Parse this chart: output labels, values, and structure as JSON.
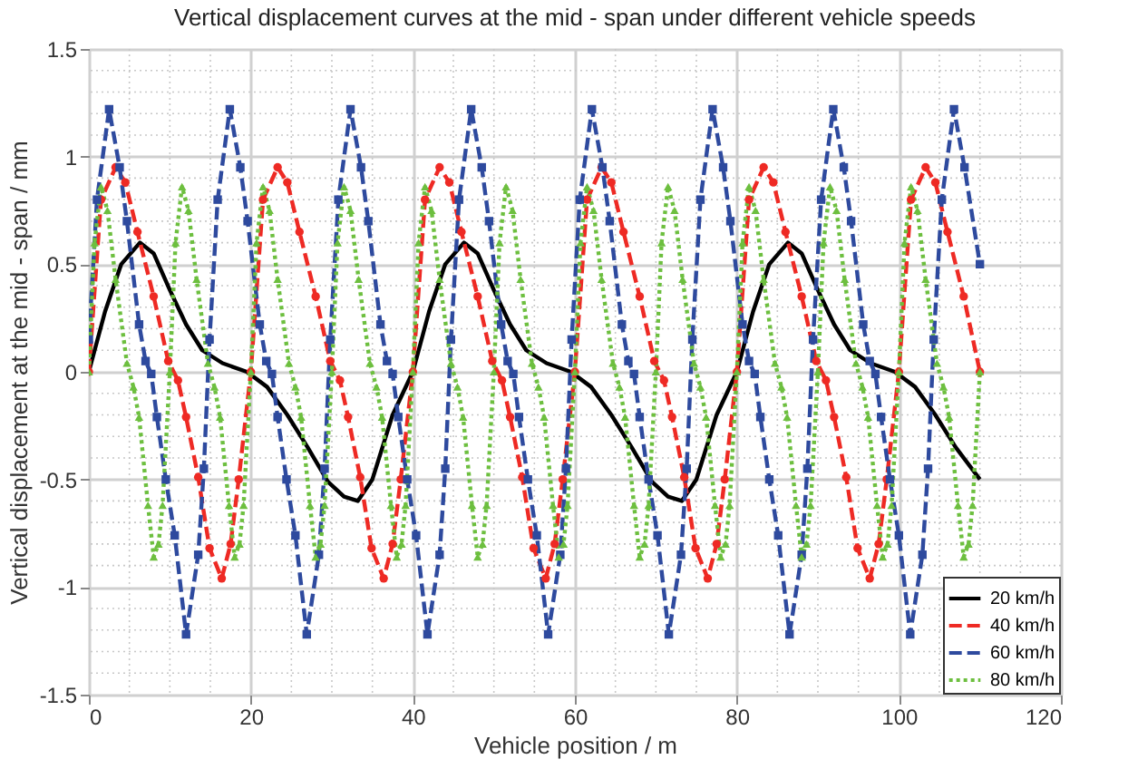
{
  "chart_data": {
    "type": "line",
    "title": "Vertical displacement curves at the mid - span under different vehicle speeds",
    "xlabel": "Vehicle position / m",
    "ylabel": "Vertical displacement at the mid - span / mm",
    "xlim": [
      0,
      120
    ],
    "xticks": [
      0,
      20,
      40,
      60,
      80,
      100,
      120
    ],
    "ylim": [
      -1.5,
      1.5
    ],
    "yticks": [
      -1.5,
      -1,
      -0.5,
      0,
      0.5,
      1,
      1.5
    ],
    "grid": true,
    "legend": "bottom right",
    "series": [
      {
        "name": "20 km/h",
        "color": "#000000",
        "line_style": "solid",
        "marker": "none",
        "x": [
          0,
          2,
          4,
          6.3,
          8,
          10,
          12,
          14,
          16.5,
          19.5,
          22,
          24.5,
          27,
          29.5,
          31.5,
          33.2,
          35,
          37.5,
          40,
          42,
          44,
          46.3,
          48,
          50,
          52,
          54,
          56.5,
          59.5,
          62,
          64.5,
          67,
          69.5,
          71.5,
          73.2,
          75,
          77.5,
          80,
          82,
          84,
          86.3,
          88,
          90,
          92,
          94,
          96.5,
          99.5,
          102,
          104.5,
          107,
          110
        ],
        "values": [
          0,
          0.28,
          0.5,
          0.6,
          0.55,
          0.38,
          0.22,
          0.1,
          0.04,
          0,
          -0.07,
          -0.2,
          -0.35,
          -0.51,
          -0.58,
          -0.6,
          -0.5,
          -0.2,
          0,
          0.28,
          0.5,
          0.6,
          0.55,
          0.38,
          0.22,
          0.1,
          0.04,
          0,
          -0.07,
          -0.2,
          -0.35,
          -0.51,
          -0.58,
          -0.6,
          -0.5,
          -0.2,
          0,
          0.28,
          0.5,
          0.6,
          0.55,
          0.38,
          0.22,
          0.1,
          0.04,
          0,
          -0.07,
          -0.2,
          -0.35,
          -0.5
        ]
      },
      {
        "name": "40 km/h",
        "color": "#ee2a24",
        "line_style": "dashed",
        "marker": "circle",
        "x": [
          0,
          1.5,
          3.3,
          4.5,
          6,
          8,
          9.8,
          11,
          12,
          13.5,
          14.9,
          16.4,
          17.5,
          18.5,
          20,
          21.5,
          23.3,
          24.5,
          26,
          28,
          29.8,
          31,
          32,
          33.5,
          34.9,
          36.4,
          37.5,
          38.5,
          40,
          41.5,
          43.3,
          44.5,
          46,
          48,
          49.8,
          51,
          52,
          53.5,
          54.9,
          56.4,
          57.5,
          58.5,
          60,
          61.5,
          63.3,
          64.5,
          66,
          68,
          69.8,
          71,
          72,
          73.5,
          74.9,
          76.4,
          77.5,
          78.5,
          80,
          81.5,
          83.3,
          84.5,
          86,
          88,
          89.8,
          91,
          92,
          93.5,
          94.9,
          96.4,
          97.5,
          98.5,
          100,
          101.5,
          103.3,
          104.5,
          106,
          108,
          110
        ],
        "values": [
          0,
          0.8,
          0.95,
          0.88,
          0.65,
          0.35,
          0.05,
          -0.04,
          -0.21,
          -0.49,
          -0.82,
          -0.96,
          -0.8,
          -0.5,
          0,
          0.8,
          0.95,
          0.88,
          0.65,
          0.35,
          0.05,
          -0.04,
          -0.21,
          -0.49,
          -0.82,
          -0.96,
          -0.8,
          -0.5,
          0,
          0.8,
          0.95,
          0.88,
          0.65,
          0.35,
          0.05,
          -0.04,
          -0.21,
          -0.49,
          -0.82,
          -0.96,
          -0.8,
          -0.5,
          0,
          0.8,
          0.95,
          0.88,
          0.65,
          0.35,
          0.05,
          -0.04,
          -0.21,
          -0.49,
          -0.82,
          -0.96,
          -0.8,
          -0.5,
          0,
          0.8,
          0.95,
          0.88,
          0.65,
          0.35,
          0.05,
          -0.04,
          -0.21,
          -0.49,
          -0.82,
          -0.96,
          -0.8,
          -0.5,
          0,
          0.8,
          0.95,
          0.88,
          0.65,
          0.35,
          0
        ]
      },
      {
        "name": "60 km/h",
        "color": "#2e4a9e",
        "line_style": "dashed",
        "marker": "square",
        "x": [
          0,
          1,
          2.5,
          3.8,
          4.7,
          6.2,
          7,
          7.7,
          8.4,
          9.5,
          10.6,
          12,
          13.5,
          14.2,
          14.9,
          15.9,
          17.4,
          18.7,
          19.6,
          21.1,
          21.9,
          22.6,
          23.3,
          24.4,
          25.5,
          26.9,
          28.4,
          29.1,
          29.8,
          30.8,
          32.3,
          33.6,
          34.5,
          36,
          36.8,
          37.5,
          38.2,
          39.3,
          40.4,
          41.8,
          43.3,
          44,
          44.7,
          45.7,
          47.2,
          48.5,
          49.4,
          50.9,
          51.7,
          52.4,
          53.1,
          54.2,
          55.3,
          56.7,
          58.2,
          58.9,
          59.6,
          60.6,
          62.1,
          63.4,
          64.3,
          65.8,
          66.6,
          67.3,
          68,
          69.1,
          70.2,
          71.6,
          73.1,
          73.8,
          74.5,
          75.5,
          77,
          78.3,
          79.2,
          80.7,
          81.5,
          82.2,
          82.9,
          84,
          85.1,
          86.5,
          88,
          88.7,
          89.4,
          90.4,
          91.9,
          93.2,
          94.1,
          95.6,
          96.4,
          97.1,
          97.8,
          98.9,
          100,
          101.4,
          102.9,
          103.6,
          104.3,
          105.3,
          106.8,
          108.1,
          110
        ],
        "values": [
          0.15,
          0.8,
          1.22,
          0.95,
          0.7,
          0.22,
          0.05,
          -0.01,
          -0.21,
          -0.5,
          -0.76,
          -1.22,
          -0.85,
          -0.45,
          0.15,
          0.8,
          1.22,
          0.95,
          0.7,
          0.22,
          0.05,
          -0.01,
          -0.21,
          -0.5,
          -0.76,
          -1.22,
          -0.85,
          -0.45,
          0.15,
          0.8,
          1.22,
          0.95,
          0.7,
          0.22,
          0.05,
          -0.01,
          -0.21,
          -0.5,
          -0.76,
          -1.22,
          -0.85,
          -0.45,
          0.15,
          0.8,
          1.22,
          0.95,
          0.7,
          0.22,
          0.05,
          -0.01,
          -0.21,
          -0.5,
          -0.76,
          -1.22,
          -0.85,
          -0.45,
          0.15,
          0.8,
          1.22,
          0.95,
          0.7,
          0.22,
          0.05,
          -0.01,
          -0.21,
          -0.5,
          -0.76,
          -1.22,
          -0.85,
          -0.45,
          0.15,
          0.8,
          1.22,
          0.95,
          0.7,
          0.22,
          0.05,
          -0.01,
          -0.21,
          -0.5,
          -0.76,
          -1.22,
          -0.85,
          -0.45,
          0.15,
          0.8,
          1.22,
          0.95,
          0.7,
          0.22,
          0.05,
          -0.01,
          -0.21,
          -0.5,
          -0.76,
          -1.22,
          -0.85,
          -0.45,
          0.15,
          0.8,
          1.22,
          0.95,
          0.5
        ]
      },
      {
        "name": "80 km/h",
        "color": "#6dbf3f",
        "line_style": "dotted",
        "marker": "triangle",
        "x": [
          0,
          0.7,
          1.5,
          2.3,
          3.3,
          4.7,
          5.5,
          6.2,
          7.3,
          8,
          8.6,
          9.1,
          10,
          10.7,
          11.5,
          12.3,
          13.3,
          14.7,
          15.5,
          16.2,
          17.3,
          18,
          18.6,
          19.1,
          20,
          20.7,
          21.5,
          22.3,
          23.3,
          24.7,
          25.5,
          26.2,
          27.3,
          28,
          28.6,
          29.1,
          30,
          30.7,
          31.5,
          32.3,
          33.3,
          34.7,
          35.5,
          36.2,
          37.3,
          38,
          38.6,
          39.1,
          40,
          40.7,
          41.5,
          42.3,
          43.3,
          44.7,
          45.5,
          46.2,
          47.3,
          48,
          48.6,
          49.1,
          50,
          50.7,
          51.5,
          52.3,
          53.3,
          54.7,
          55.5,
          56.2,
          57.3,
          58,
          58.6,
          59.1,
          60,
          60.7,
          61.5,
          62.3,
          63.3,
          64.7,
          65.5,
          66.2,
          67.3,
          68,
          68.6,
          69.1,
          70,
          70.7,
          71.5,
          72.3,
          73.3,
          74.7,
          75.5,
          76.2,
          77.3,
          78,
          78.6,
          79.1,
          80,
          80.7,
          81.5,
          82.3,
          83.3,
          84.7,
          85.5,
          86.2,
          87.3,
          88,
          88.6,
          89.1,
          90,
          90.7,
          91.5,
          92.3,
          93.3,
          94.7,
          95.5,
          96.2,
          97.3,
          98,
          98.6,
          99.1,
          100,
          100.7,
          101.5,
          102.3,
          103.3,
          104.7,
          105.5,
          106.2,
          107.3,
          108,
          108.6,
          109.1,
          110
        ],
        "values": [
          0,
          0.6,
          0.86,
          0.75,
          0.43,
          0.04,
          -0.07,
          -0.21,
          -0.62,
          -0.86,
          -0.8,
          -0.62,
          0,
          0.6,
          0.86,
          0.75,
          0.43,
          0.04,
          -0.07,
          -0.21,
          -0.62,
          -0.86,
          -0.8,
          -0.62,
          0,
          0.6,
          0.86,
          0.75,
          0.43,
          0.04,
          -0.07,
          -0.21,
          -0.62,
          -0.86,
          -0.8,
          -0.62,
          0,
          0.6,
          0.86,
          0.75,
          0.43,
          0.04,
          -0.07,
          -0.21,
          -0.62,
          -0.86,
          -0.8,
          -0.62,
          0,
          0.6,
          0.86,
          0.75,
          0.43,
          0.04,
          -0.07,
          -0.21,
          -0.62,
          -0.86,
          -0.8,
          -0.62,
          0,
          0.6,
          0.86,
          0.75,
          0.43,
          0.04,
          -0.07,
          -0.21,
          -0.62,
          -0.86,
          -0.8,
          -0.62,
          0,
          0.6,
          0.86,
          0.75,
          0.43,
          0.04,
          -0.07,
          -0.21,
          -0.62,
          -0.86,
          -0.8,
          -0.62,
          0,
          0.6,
          0.86,
          0.75,
          0.43,
          0.04,
          -0.07,
          -0.21,
          -0.62,
          -0.86,
          -0.8,
          -0.62,
          0,
          0.6,
          0.86,
          0.75,
          0.43,
          0.04,
          -0.07,
          -0.21,
          -0.62,
          -0.86,
          -0.8,
          -0.62,
          0,
          0.6,
          0.86,
          0.75,
          0.43,
          0.04,
          -0.07,
          -0.21,
          -0.62,
          -0.86,
          -0.8,
          -0.62,
          0,
          0.6,
          0.86,
          0.75,
          0.43,
          0.04,
          -0.07,
          -0.21,
          -0.62,
          -0.86,
          -0.8,
          -0.62,
          0
        ]
      }
    ]
  }
}
